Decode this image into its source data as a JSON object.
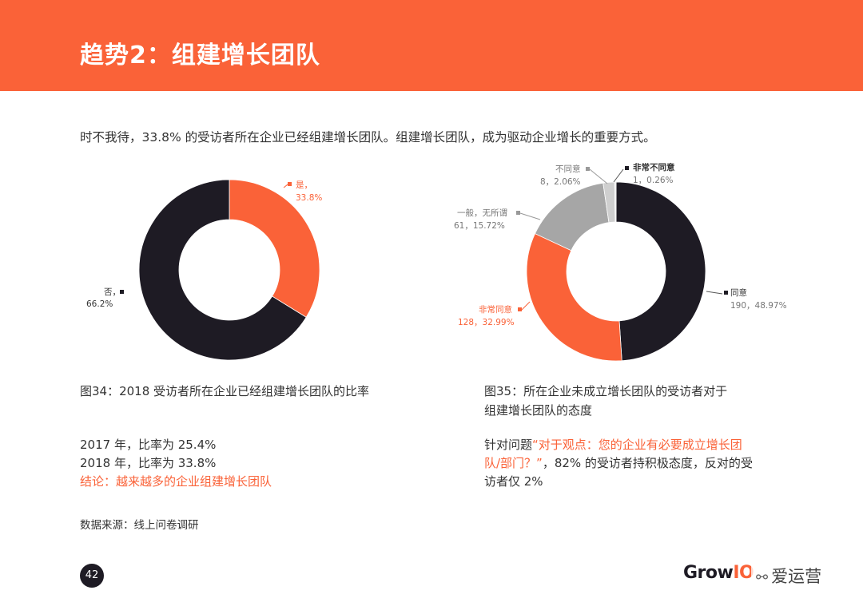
{
  "header": {
    "title": "趋势2：组建增长团队"
  },
  "intro": "时不我待，33.8% 的受访者所在企业已经组建增长团队。组建增长团队，成为驱动企业增长的重要方式。",
  "chart_data": [
    {
      "type": "pie",
      "title": "图34：2018 受访者所在企业已经组建增长团队的比率",
      "slices": [
        {
          "label": "是，",
          "value": 33.8,
          "display": "33.8%",
          "color": "#fa6238"
        },
        {
          "label": "否，",
          "value": 66.2,
          "display": "66.2%",
          "color": "#1e1b24"
        }
      ]
    },
    {
      "type": "pie",
      "title": "图35：所在企业未成立增长团队的受访者对于组建增长团队的态度",
      "title_lines": [
        "图35：所在企业未成立增长团队的受访者对于",
        "组建增长团队的态度"
      ],
      "slices": [
        {
          "label": "同意",
          "count": 190,
          "value": 48.97,
          "display": "190，48.97%",
          "color": "#1e1b24"
        },
        {
          "label": "非常同意",
          "count": 128,
          "value": 32.99,
          "display": "128，32.99%",
          "color": "#fa6238"
        },
        {
          "label": "一般，无所谓",
          "count": 61,
          "value": 15.72,
          "display": "61，15.72%",
          "color": "#a6a6a6"
        },
        {
          "label": "不同意",
          "count": 8,
          "value": 2.06,
          "display": "8，2.06%",
          "color": "#cfcfcf"
        },
        {
          "label": "非常不同意",
          "count": 1,
          "value": 0.26,
          "display": "1，0.26%",
          "color": "#e6e6e6"
        }
      ]
    }
  ],
  "notes_left": {
    "line1": "2017 年，比率为 25.4%",
    "line2": "2018 年，比率为 33.8%",
    "conclusion": "结论：越来越多的企业组建增长团队"
  },
  "notes_right": {
    "prefix": "针对问题",
    "quote_line1": "“对于观点：您的企业有必要成立增长团",
    "quote_line2": "队/部门？”",
    "suffix_line2": "，82% 的受访者持积极态度，反对的受",
    "line3": "访者仅 2%"
  },
  "source": "数据来源：线上问卷调研",
  "footer": {
    "page_number": "42",
    "brand_main": "Grow",
    "brand_accent": "IO",
    "watermark": "爱运营"
  },
  "colors": {
    "accent": "#fa6238",
    "dark": "#1e1b24"
  }
}
